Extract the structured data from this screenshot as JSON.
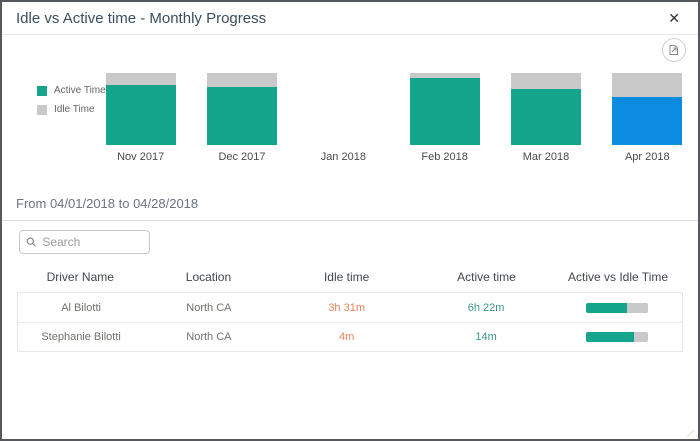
{
  "modal": {
    "title": "Idle vs Active time - Monthly Progress",
    "close_glyph": "✕"
  },
  "chart_data": {
    "type": "bar",
    "subtype": "stacked-percent-column",
    "categories": [
      "Nov 2017",
      "Dec 2017",
      "Jan 2018",
      "Feb 2018",
      "Mar 2018",
      "Apr 2018"
    ],
    "series": [
      {
        "name": "Active Time",
        "color": "#15a48c",
        "values": [
          83,
          81,
          0,
          93,
          78,
          67
        ]
      },
      {
        "name": "Idle Time",
        "color": "#c9c9c9",
        "values": [
          17,
          19,
          0,
          7,
          22,
          33
        ]
      }
    ],
    "selected_category": "Apr 2018",
    "selected_active_color": "#0b8ce0",
    "legend_position": "left",
    "ylim": [
      0,
      100
    ],
    "grid": false
  },
  "period": {
    "label": "From 04/01/2018 to 04/28/2018"
  },
  "search": {
    "placeholder": "Search"
  },
  "table": {
    "columns": [
      "Driver Name",
      "Location",
      "Idle time",
      "Active time",
      "Active vs Idle Time"
    ],
    "rows": [
      {
        "driver": "Al Bilotti",
        "location": "North CA",
        "idle": "3h 31m",
        "active": "6h 22m",
        "active_pct": 66
      },
      {
        "driver": "Stephanie Bilotti",
        "location": "North CA",
        "idle": "4m",
        "active": "14m",
        "active_pct": 77
      }
    ]
  },
  "colors": {
    "active": "#15a48c",
    "idle": "#c9c9c9",
    "selected": "#0b8ce0",
    "idle_text": "#e5845c",
    "active_text": "#39958a"
  }
}
